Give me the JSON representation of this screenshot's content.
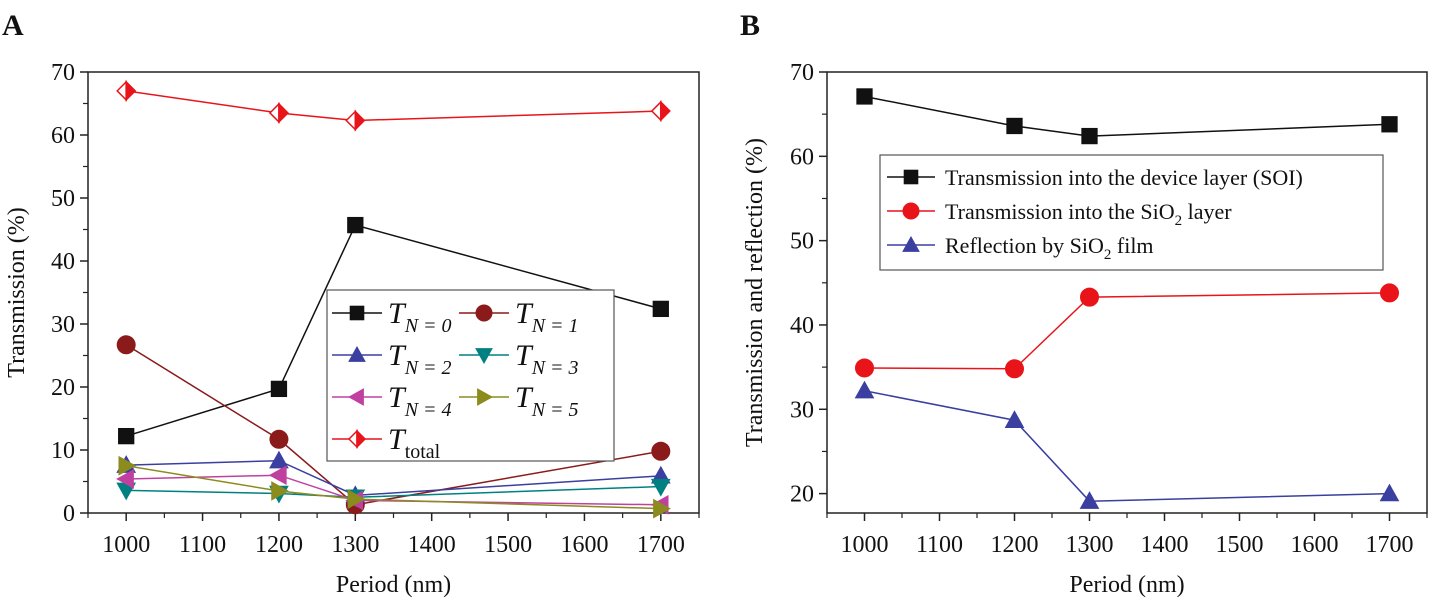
{
  "chart_data": [
    {
      "panel_label": "A",
      "type": "line",
      "xlabel": "Period (nm)",
      "ylabel": "Transmission (%)",
      "xlim": [
        950,
        1750
      ],
      "ylim": [
        0,
        70
      ],
      "xticks": [
        1000,
        1100,
        1200,
        1300,
        1400,
        1500,
        1600,
        1700
      ],
      "yticks": [
        0,
        10,
        20,
        30,
        40,
        50,
        60,
        70
      ],
      "grid": false,
      "legend": "center-right",
      "x": [
        1000,
        1200,
        1300,
        1700
      ],
      "series": [
        {
          "name": "T",
          "sub": "N = 0",
          "marker": "square",
          "color": "#111111",
          "values": [
            12.2,
            19.7,
            45.7,
            32.4
          ]
        },
        {
          "name": "T",
          "sub": "N = 1",
          "marker": "circle",
          "color": "#8b1a1a",
          "values": [
            26.7,
            11.7,
            1.3,
            9.8
          ]
        },
        {
          "name": "T",
          "sub": "N = 2",
          "marker": "triangle-up",
          "color": "#3a3fa0",
          "values": [
            7.6,
            8.3,
            2.8,
            5.9
          ]
        },
        {
          "name": "T",
          "sub": "N = 3",
          "marker": "triangle-down",
          "color": "#008080",
          "values": [
            3.6,
            3.1,
            2.5,
            4.2
          ]
        },
        {
          "name": "T",
          "sub": "N = 4",
          "marker": "triangle-left",
          "color": "#c040a0",
          "values": [
            5.4,
            6.0,
            2.0,
            1.3
          ]
        },
        {
          "name": "T",
          "sub": "N = 5",
          "marker": "triangle-right",
          "color": "#8b8b1e",
          "values": [
            7.5,
            3.5,
            2.2,
            0.7
          ]
        },
        {
          "name": "T",
          "sub": "total",
          "marker": "diamond-half",
          "color": "#e8141a",
          "values": [
            67.0,
            63.5,
            62.3,
            63.8
          ]
        }
      ]
    },
    {
      "panel_label": "B",
      "type": "line",
      "xlabel": "Period (nm)",
      "ylabel": "Transmission and reflection (%)",
      "xlim": [
        950,
        1750
      ],
      "ylim": [
        17.7,
        70
      ],
      "xticks": [
        1000,
        1100,
        1200,
        1300,
        1400,
        1500,
        1600,
        1700
      ],
      "yticks": [
        20,
        30,
        40,
        50,
        60,
        70
      ],
      "grid": false,
      "legend": "upper-center",
      "x": [
        1000,
        1200,
        1300,
        1700
      ],
      "series": [
        {
          "name": "Transmission into the device layer (SOI)",
          "marker": "square",
          "color": "#111111",
          "values": [
            67.1,
            63.6,
            62.4,
            63.8
          ]
        },
        {
          "name": "Transmission into the SiO",
          "name_sub": "2",
          "name_after": " layer",
          "marker": "circle",
          "color": "#e8141a",
          "values": [
            34.9,
            34.8,
            43.3,
            43.8
          ]
        },
        {
          "name": "Reflection by SiO",
          "name_sub": "2",
          "name_after": " film",
          "marker": "triangle-up",
          "color": "#3a3fa0",
          "values": [
            32.2,
            28.7,
            19.1,
            20.0
          ]
        }
      ]
    }
  ]
}
